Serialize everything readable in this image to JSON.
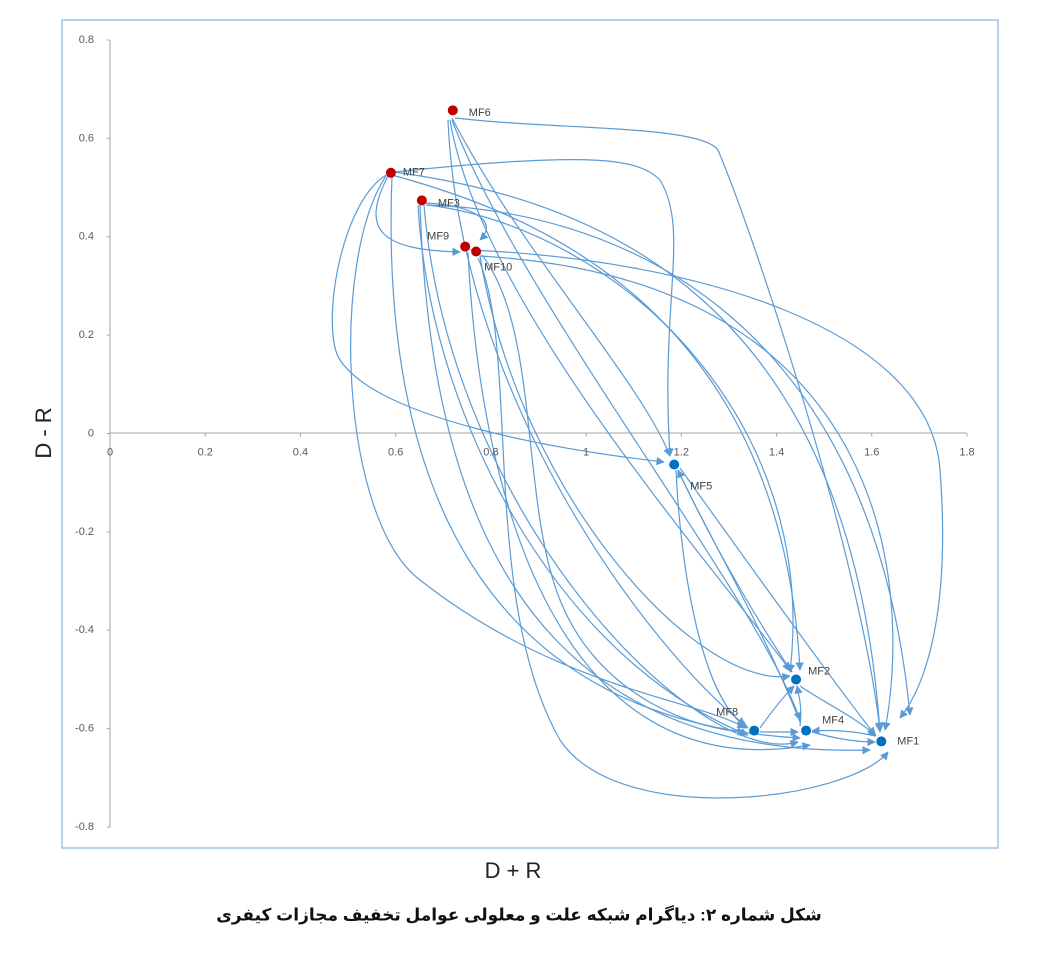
{
  "chart_data": {
    "type": "scatter",
    "labels": [
      "MF6",
      "MF7",
      "MF3",
      "MF9",
      "MF10",
      "MF5",
      "MF2",
      "MF8",
      "MF4",
      "MF1"
    ],
    "x": [
      0.72,
      0.59,
      0.655,
      0.746,
      0.769,
      1.185,
      1.441,
      1.353,
      1.462,
      1.62
    ],
    "y": [
      0.657,
      0.53,
      0.474,
      0.38,
      0.37,
      -0.063,
      -0.5,
      -0.604,
      -0.604,
      -0.626
    ],
    "colors": [
      "#c00000",
      "#c00000",
      "#c00000",
      "#c00000",
      "#c00000",
      "#0070c0",
      "#0070c0",
      "#0070c0",
      "#0070c0",
      "#0070c0"
    ],
    "xlim": [
      0,
      1.8
    ],
    "ylim": [
      -0.8,
      0.8
    ],
    "xticks": [
      0,
      0.2,
      0.4,
      0.6,
      0.8,
      1,
      1.2,
      1.4,
      1.6,
      1.8
    ],
    "yticks": [
      0.8,
      0.6,
      0.4,
      0.2,
      0,
      -0.2,
      -0.4,
      -0.6,
      -0.8
    ],
    "xlabel": "D + R",
    "ylabel": "D - R",
    "grid": false
  },
  "caption": "شکل شماره ۲: دیاگرام شبکه علت و معلولی عوامل تخفیف مجازات کیفری"
}
